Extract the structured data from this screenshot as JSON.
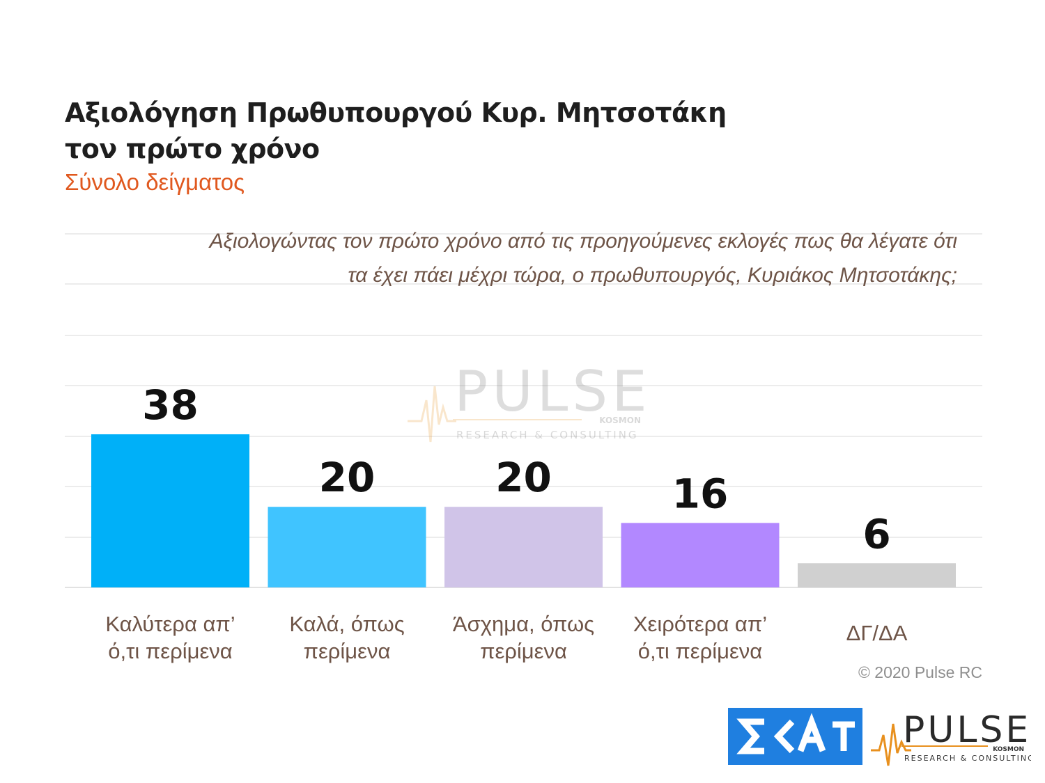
{
  "header": {
    "title_line1": "Αξιολόγηση Πρωθυπουργού Κυρ. Μητσοτάκη",
    "title_line2": "τον πρώτο χρόνο",
    "subtitle": "Σύνολο δείγματος"
  },
  "question": {
    "line1": "Αξιολογώντας τον πρώτο χρόνο από τις προηγούμενες εκλογές πως θα λέγατε ότι",
    "line2": "τα έχει πάει μέχρι τώρα, ο πρωθυπουργός, Κυριάκος Μητσοτάκης;"
  },
  "chart_data": {
    "type": "bar",
    "categories": [
      [
        "Καλύτερα απ’",
        "ό,τι περίμενα"
      ],
      [
        "Καλά, όπως",
        "περίμενα"
      ],
      [
        "Άσχημα, όπως",
        "περίμενα"
      ],
      [
        "Χειρότερα απ’",
        "ό,τι περίμενα"
      ],
      [
        "ΔΓ/ΔΑ"
      ]
    ],
    "values": [
      38,
      20,
      20,
      16,
      6
    ],
    "colors": [
      "#00b0f8",
      "#40c4ff",
      "#d0c4e8",
      "#b288ff",
      "#d0d0d0"
    ],
    "ylim": [
      0,
      62
    ],
    "grid": true
  },
  "watermark": {
    "brand": "PULSE",
    "kosmon": "KOSMON",
    "tagline": "RESEARCH & CONSULTING"
  },
  "footer": {
    "copyright": "© 2020 Pulse RC",
    "skai_logo_text": "ΣΚΑΪ",
    "pulse_logo": {
      "brand": "PULSE",
      "kosmon": "KOSMON",
      "tagline": "RESEARCH & CONSULTING"
    }
  }
}
